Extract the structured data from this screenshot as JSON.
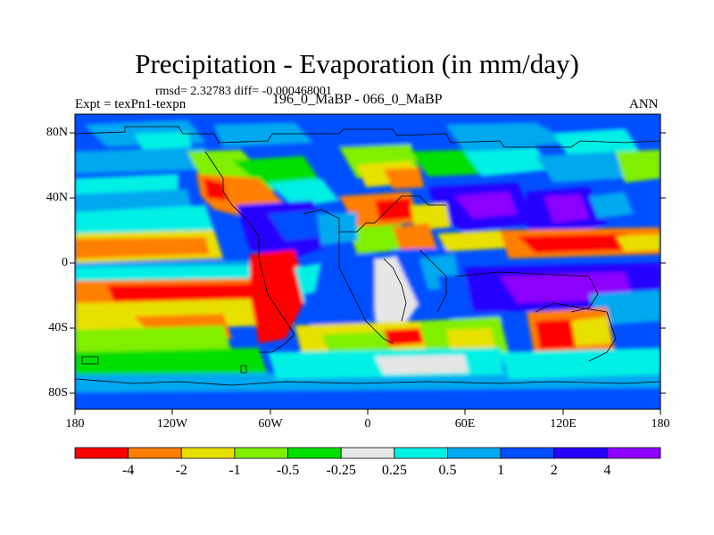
{
  "header": {
    "title": "Precipitation - Evaporation (in mm/day)",
    "stats": "rmsd= 2.32783 diff= -0.000468001",
    "experiment": "Expt = texPn1-texpn",
    "period": "196_0_MaBP - 066_0_MaBP",
    "season": "ANN"
  },
  "axes": {
    "latitude_ticks": [
      "80N",
      "40N",
      "0",
      "40S",
      "80S"
    ],
    "longitude_ticks": [
      "180",
      "120W",
      "60W",
      "0",
      "60E",
      "120E",
      "180"
    ]
  },
  "colorbar": {
    "colors": [
      "#ff0000",
      "#ff7f00",
      "#e8e000",
      "#80f000",
      "#00e000",
      "#e6e6e6",
      "#00f0e6",
      "#00a8f0",
      "#0050ff",
      "#2800ff",
      "#8c00ff"
    ],
    "labels": [
      "-4",
      "-2",
      "-1",
      "-0.5",
      "-0.25",
      "0.25",
      "0.5",
      "1",
      "2",
      "4"
    ]
  }
}
